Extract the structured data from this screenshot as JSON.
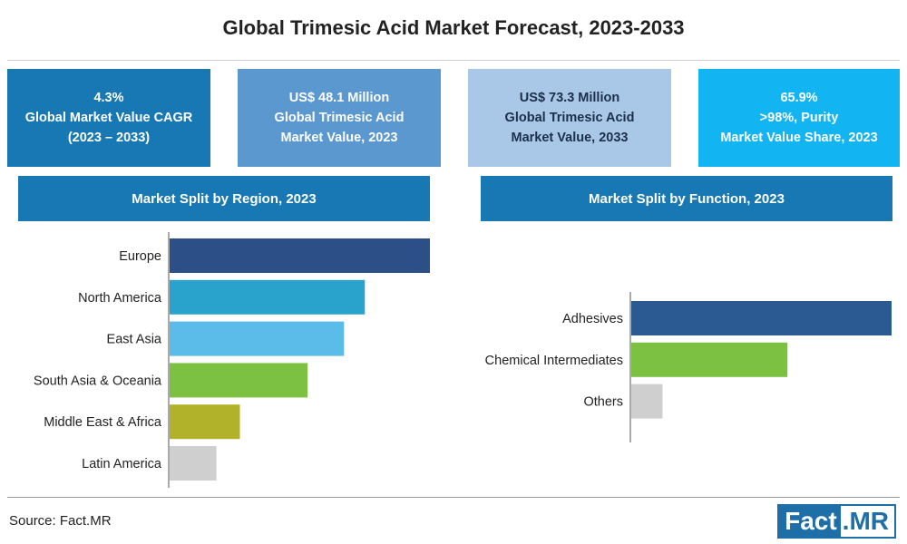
{
  "title": "Global Trimesic Acid Market Forecast, 2023-2033",
  "kpis": [
    {
      "line1": "4.3%",
      "line2": "Global Market Value CAGR",
      "line3": "(2023 – 2033)",
      "color": "#1778b4"
    },
    {
      "line1": "US$ 48.1 Million",
      "line2": "Global Trimesic Acid",
      "line3": "Market Value, 2023",
      "color": "#5a98cf"
    },
    {
      "line1": "US$ 73.3 Million",
      "line2": "Global Trimesic Acid",
      "line3": "Market Value, 2033",
      "color": "#a9c8e8"
    },
    {
      "line1": "65.9%",
      "line2": ">98%, Purity",
      "line3": "Market Value Share, 2023",
      "color": "#12b4f2"
    }
  ],
  "section_headers": {
    "region": "Market Split by Region, 2023",
    "function": "Market Split by Function, 2023"
  },
  "chart_data": [
    {
      "type": "bar",
      "orientation": "horizontal",
      "categories": [
        "Europe",
        "North America",
        "East Asia",
        "South Asia & Oceania",
        "Middle East & Africa",
        "Latin America"
      ],
      "values": [
        100,
        75,
        67,
        53,
        27,
        18
      ],
      "colors": [
        "#2b4f86",
        "#2aa3cc",
        "#5bbbe9",
        "#7cc142",
        "#b2b12a",
        "#cfcfcf"
      ]
    },
    {
      "type": "bar",
      "orientation": "horizontal",
      "categories": [
        "Adhesives",
        "Chemical Intermediates",
        "Others"
      ],
      "values": [
        100,
        60,
        12
      ],
      "colors": [
        "#2b5a92",
        "#7cc142",
        "#cfcfcf"
      ]
    }
  ],
  "footer": {
    "source": "Source: Fact.MR",
    "logo_part1": "Fact",
    "logo_part2": ".MR"
  }
}
